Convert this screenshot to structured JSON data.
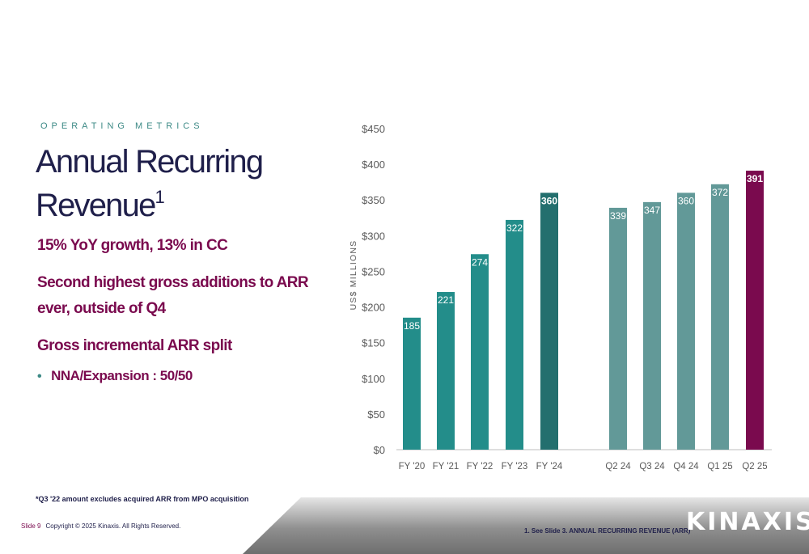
{
  "header": {
    "eyebrow": "OPERATING METRICS"
  },
  "title": {
    "text": "Annual Recurring Revenue",
    "superscript": "1"
  },
  "points": [
    "15% YoY growth, 13% in CC",
    "Second highest gross additions to ARR ever, outside of Q4",
    "Gross incremental ARR split"
  ],
  "sub_point": {
    "bullet": "•",
    "text": "NNA/Expansion : 50/50"
  },
  "footnote_left": "*Q3 '22 amount excludes acquired ARR from MPO acquisition",
  "footer": {
    "slide": "Slide 9",
    "copyright": "Copyright © 2025 Kinaxis. All Rights Reserved.",
    "footnote_right": "1.   See Slide 3. ANNUAL RECURRING REVENUE (ARR)",
    "logo_text": "KINAXIS",
    "logo_mark": "®"
  },
  "chart_data": {
    "type": "bar",
    "ylabel": "US$ MILLIONS",
    "ylim": [
      0,
      450
    ],
    "yticks": [
      0,
      50,
      100,
      150,
      200,
      250,
      300,
      350,
      400,
      450
    ],
    "ytick_labels": [
      "$0",
      "$50",
      "$100",
      "$150",
      "$200",
      "$250",
      "$300",
      "$350",
      "$400",
      "$450"
    ],
    "categories": [
      "FY '20",
      "FY '21",
      "FY '22",
      "FY '23",
      "FY '24",
      "Q2 24",
      "Q3 24",
      "Q4 24",
      "Q1 25",
      "Q2 25"
    ],
    "values": [
      185,
      221,
      274,
      322,
      360,
      339,
      347,
      360,
      372,
      391
    ],
    "colors": [
      "#238d8a",
      "#238d8a",
      "#238d8a",
      "#238d8a",
      "#236f6e",
      "#629998",
      "#629998",
      "#629998",
      "#629998",
      "#7a0a4e"
    ],
    "grid": false,
    "legend": "none"
  }
}
